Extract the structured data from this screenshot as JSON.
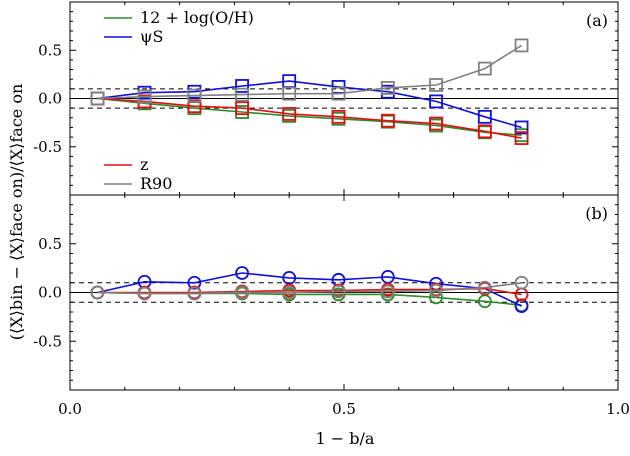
{
  "chart_data": [
    {
      "type": "line",
      "panel_label": "(a)",
      "x": [
        0.05,
        0.136,
        0.227,
        0.314,
        0.4,
        0.49,
        0.58,
        0.668,
        0.757,
        0.824
      ],
      "xlim": [
        0.0,
        1.0
      ],
      "ylim": [
        -1.0,
        1.0
      ],
      "yticks": [
        "0.5",
        "0.0",
        "-0.5"
      ],
      "yticks_values": [
        0.5,
        0.0,
        -0.5
      ],
      "reference_lines": [
        0.0,
        0.1,
        -0.1
      ],
      "marker": "square",
      "legend_upper": [
        "12 + log(O/H)",
        "ψS"
      ],
      "legend_lower": [
        "z",
        "R90"
      ],
      "series": [
        {
          "name": "12 + log(O/H)",
          "color": "#2e8b2e",
          "values": [
            0.0,
            -0.05,
            -0.1,
            -0.14,
            -0.18,
            -0.21,
            -0.24,
            -0.28,
            -0.35,
            -0.38
          ]
        },
        {
          "name": "ψS",
          "color": "#1010d8",
          "values": [
            0.0,
            0.06,
            0.07,
            0.13,
            0.18,
            0.12,
            0.07,
            -0.03,
            -0.19,
            -0.3
          ]
        },
        {
          "name": "z",
          "color": "#e01010",
          "values": [
            0.0,
            -0.03,
            -0.08,
            -0.1,
            -0.16,
            -0.19,
            -0.23,
            -0.26,
            -0.34,
            -0.41
          ]
        },
        {
          "name": "R90",
          "color": "#808080",
          "values": [
            0.0,
            0.02,
            0.03,
            0.04,
            0.05,
            0.05,
            0.11,
            0.14,
            0.31,
            0.55
          ]
        }
      ]
    },
    {
      "type": "line",
      "panel_label": "(b)",
      "x": [
        0.05,
        0.136,
        0.227,
        0.314,
        0.4,
        0.49,
        0.58,
        0.668,
        0.757,
        0.824
      ],
      "xlim": [
        0.0,
        1.0
      ],
      "xticks": [
        "0.0",
        "0.5",
        "1.0"
      ],
      "xticks_values": [
        0.0,
        0.5,
        1.0
      ],
      "ylim": [
        -1.0,
        1.0
      ],
      "yticks": [
        "0.5",
        "0.0",
        "-0.5"
      ],
      "yticks_values": [
        0.5,
        0.0,
        -0.5
      ],
      "reference_lines": [
        0.0,
        0.1,
        -0.1
      ],
      "marker": "circle",
      "xlabel": "1 − b/a",
      "series": [
        {
          "name": "12 + log(O/H)",
          "color": "#2e8b2e",
          "values": [
            0.0,
            -0.01,
            -0.01,
            -0.01,
            -0.02,
            -0.02,
            -0.02,
            -0.05,
            -0.09,
            -0.13
          ]
        },
        {
          "name": "ψS",
          "color": "#1010d8",
          "values": [
            0.0,
            0.11,
            0.1,
            0.2,
            0.15,
            0.13,
            0.16,
            0.09,
            0.04,
            -0.14
          ]
        },
        {
          "name": "z",
          "color": "#e01010",
          "values": [
            0.0,
            0.0,
            0.0,
            0.01,
            0.02,
            0.02,
            0.03,
            0.03,
            0.04,
            -0.02
          ]
        },
        {
          "name": "R90",
          "color": "#808080",
          "values": [
            0.0,
            -0.01,
            -0.01,
            0.0,
            0.0,
            0.01,
            0.01,
            0.02,
            0.05,
            0.1
          ]
        }
      ]
    }
  ],
  "shared_ylabel": "(⟨X⟩bin − ⟨X⟩face on)/⟨X⟩face on"
}
